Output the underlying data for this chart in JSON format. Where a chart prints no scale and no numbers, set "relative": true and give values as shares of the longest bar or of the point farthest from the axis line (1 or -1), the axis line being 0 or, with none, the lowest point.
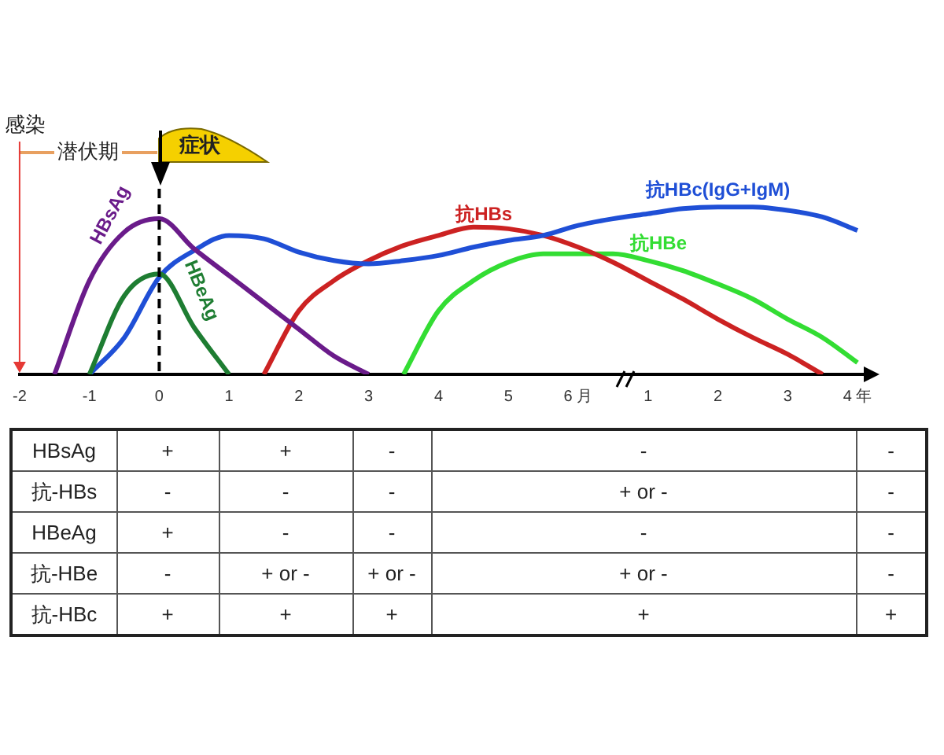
{
  "chart_data": [
    {
      "type": "line",
      "relative": true,
      "legend": false,
      "grid": false,
      "marker": "none",
      "categories": [
        "-2",
        null,
        "-1",
        null,
        "0",
        null,
        "1",
        null,
        "2",
        null,
        "3",
        null,
        "4",
        null,
        "5",
        null,
        "6 月",
        null,
        "1",
        null,
        "2",
        null,
        "3",
        null,
        "4 年"
      ],
      "series": [
        {
          "name": "HBsAg",
          "color": "#6a1b8a",
          "values": [
            null,
            0,
            0.56,
            0.85,
            0.93,
            0.75,
            0.59,
            0.43,
            0.27,
            0.11,
            0,
            null,
            null,
            null,
            null,
            null,
            null,
            null,
            null,
            null,
            null,
            null,
            null,
            null,
            null
          ]
        },
        {
          "name": "HBeAg",
          "color": "#1e7d32",
          "values": [
            null,
            null,
            0,
            0.47,
            0.6,
            0.28,
            0,
            null,
            null,
            null,
            null,
            null,
            null,
            null,
            null,
            null,
            null,
            null,
            null,
            null,
            null,
            null,
            null,
            null,
            null
          ]
        },
        {
          "name": "抗HBc(IgG+IgM)",
          "color": "#1f4fd6",
          "values": [
            null,
            null,
            0,
            0.22,
            0.58,
            0.74,
            0.83,
            0.81,
            0.73,
            0.68,
            0.66,
            0.68,
            0.71,
            0.76,
            0.8,
            0.83,
            0.89,
            0.93,
            0.96,
            0.99,
            1,
            1,
            0.98,
            0.94,
            0.86
          ]
        },
        {
          "name": "抗HBs",
          "color": "#cc2222",
          "values": [
            null,
            null,
            null,
            null,
            null,
            null,
            null,
            0,
            0.38,
            0.56,
            0.68,
            0.77,
            0.83,
            0.88,
            0.87,
            0.83,
            0.76,
            0.67,
            0.56,
            0.45,
            0.33,
            0.22,
            0.12,
            0,
            null
          ]
        },
        {
          "name": "抗HBe",
          "color": "#33dd33",
          "values": [
            null,
            null,
            null,
            null,
            null,
            null,
            null,
            null,
            null,
            null,
            null,
            0,
            0.38,
            0.56,
            0.67,
            0.72,
            0.72,
            0.72,
            0.68,
            0.62,
            0.54,
            0.45,
            0.33,
            0.22,
            0.07
          ]
        }
      ],
      "ref_lines": [
        {
          "axis": "x",
          "value": "-2",
          "label": "感染",
          "color": "#e53935"
        },
        {
          "axis": "x",
          "value": "0",
          "color": "#000000",
          "line_style": "dashed"
        }
      ],
      "annotations": [
        "潜伏期",
        "症状"
      ]
    },
    {
      "type": "other",
      "y_categories": [
        "HBsAg",
        "抗-HBs",
        "HBeAg",
        "抗-HBe",
        "抗-HBc"
      ],
      "cell_labels": [
        [
          "+",
          "+",
          "-",
          "-",
          "-"
        ],
        [
          "-",
          "-",
          "-",
          "+ or -",
          "-"
        ],
        [
          "+",
          "-",
          "-",
          "-",
          "-"
        ],
        [
          "-",
          "+ or -",
          "+ or -",
          "+ or -",
          "-"
        ],
        [
          "+",
          "+",
          "+",
          "+",
          "+"
        ]
      ]
    }
  ]
}
